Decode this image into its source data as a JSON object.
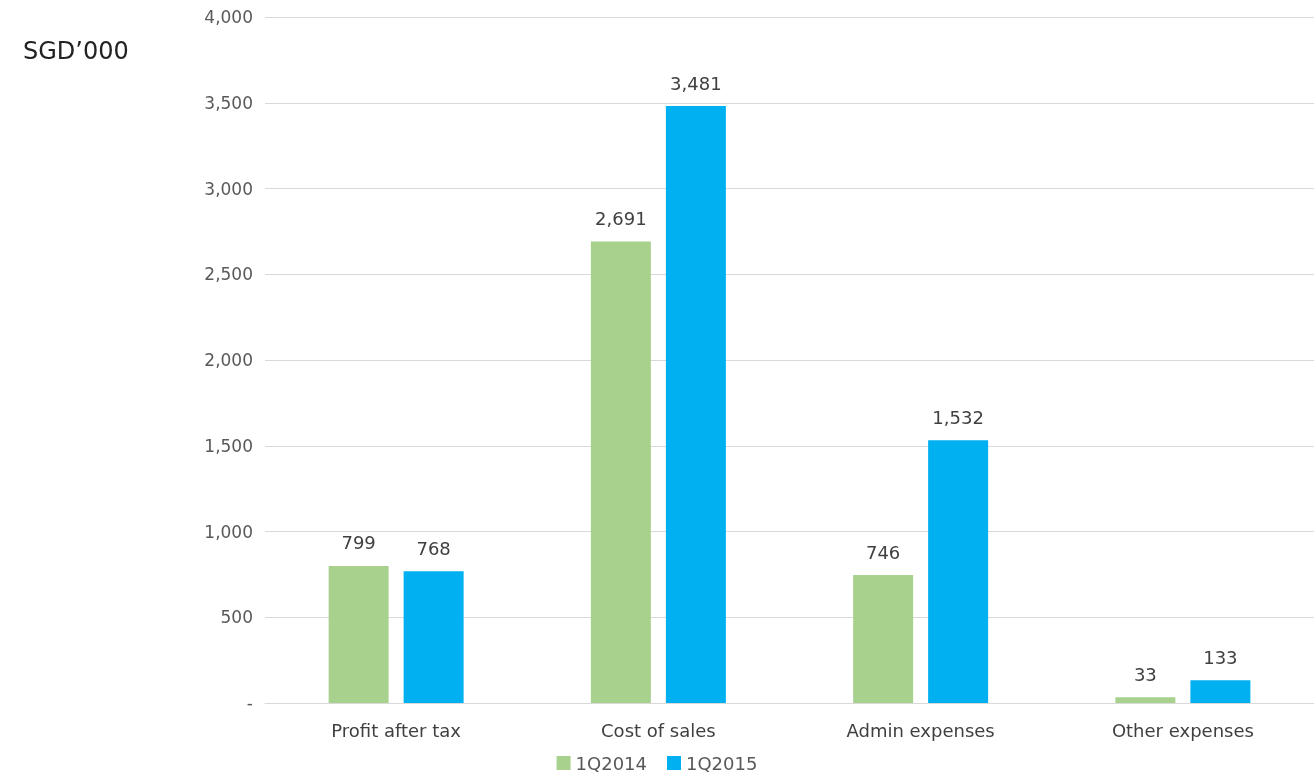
{
  "chart_data": {
    "type": "bar",
    "ylabel": "SGD’000",
    "categories": [
      "Profit after tax",
      "Cost of sales",
      "Admin expenses",
      "Other expenses"
    ],
    "series": [
      {
        "name": "1Q2014",
        "color": "#a9d18e",
        "values": [
          799,
          2691,
          746,
          33
        ],
        "value_labels": [
          "799",
          "2,691",
          "746",
          "33"
        ]
      },
      {
        "name": "1Q2015",
        "color": "#00b0f0",
        "values": [
          768,
          3481,
          1532,
          133
        ],
        "value_labels": [
          "768",
          "3,481",
          "1,532",
          "133"
        ]
      }
    ],
    "ylim": [
      0,
      4000
    ],
    "yticks": [
      {
        "value": 0,
        "label": "-"
      },
      500,
      {
        "value": 1000,
        "label": "1,000"
      },
      {
        "value": 1500,
        "label": "1,500"
      },
      {
        "value": 2000,
        "label": "2,000"
      },
      {
        "value": 2500,
        "label": "2,500"
      },
      {
        "value": 3000,
        "label": "3,000"
      },
      {
        "value": 3500,
        "label": "3,500"
      },
      {
        "value": 4000,
        "label": "4,000"
      }
    ],
    "grid": "y",
    "legend": "bottom"
  }
}
